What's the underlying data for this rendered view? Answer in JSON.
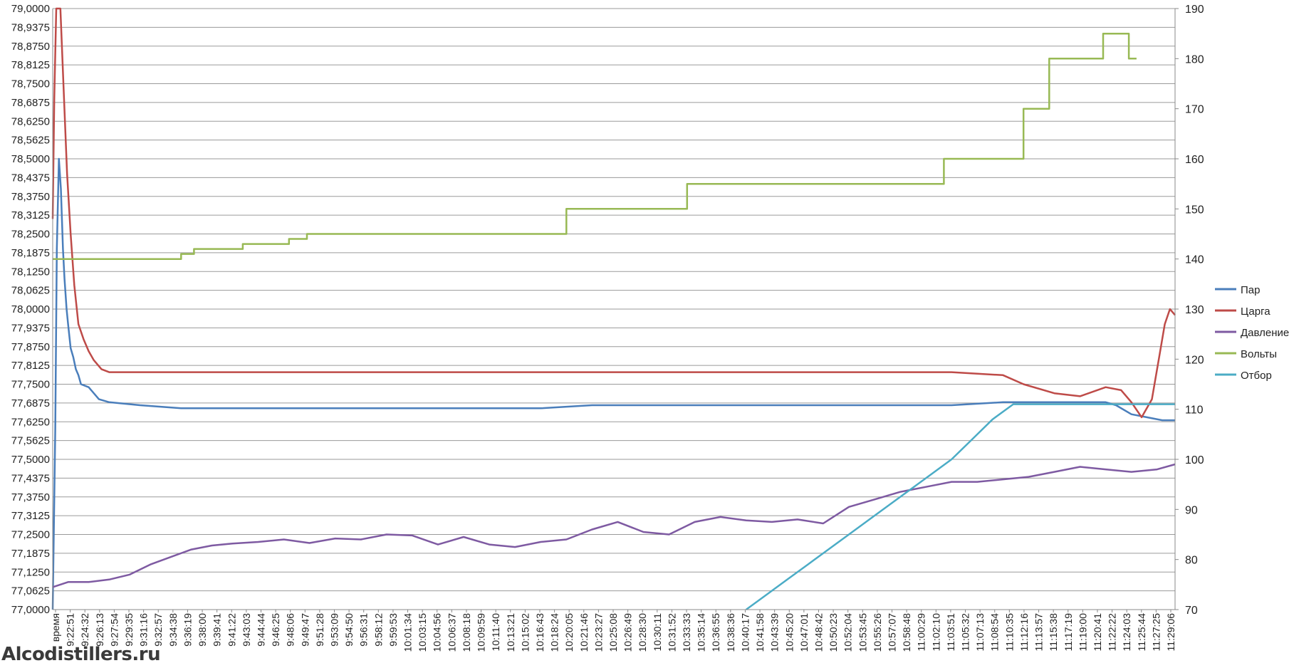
{
  "watermark": "Alcodistillers.ru",
  "chart_data": {
    "type": "line",
    "first_tick_label": "время",
    "x_tick_labels": [
      "9:22:51",
      "9:24:32",
      "9:26:13",
      "9:27:54",
      "9:29:35",
      "9:31:16",
      "9:32:57",
      "9:34:38",
      "9:36:19",
      "9:38:00",
      "9:39:41",
      "9:41:22",
      "9:43:03",
      "9:44:44",
      "9:46:25",
      "9:48:06",
      "9:49:47",
      "9:51:28",
      "9:53:09",
      "9:54:50",
      "9:56:31",
      "9:58:12",
      "9:59:53",
      "10:01:34",
      "10:03:15",
      "10:04:56",
      "10:06:37",
      "10:08:18",
      "10:09:59",
      "10:11:40",
      "10:13:21",
      "10:15:02",
      "10:16:43",
      "10:18:24",
      "10:20:05",
      "10:21:46",
      "10:23:27",
      "10:25:08",
      "10:26:49",
      "10:28:30",
      "10:30:11",
      "10:31:52",
      "10:33:33",
      "10:35:14",
      "10:36:55",
      "10:38:36",
      "10:40:17",
      "10:41:58",
      "10:43:39",
      "10:45:20",
      "10:47:01",
      "10:48:42",
      "10:50:23",
      "10:52:04",
      "10:53:45",
      "10:55:26",
      "10:57:07",
      "10:58:48",
      "11:00:29",
      "11:02:10",
      "11:03:51",
      "11:05:32",
      "11:07:13",
      "11:08:54",
      "11:10:35",
      "11:12:16",
      "11:13:57",
      "11:15:38",
      "11:17:19",
      "11:19:00",
      "11:20:41",
      "11:22:22",
      "11:24:03",
      "11:25:44",
      "11:27:25",
      "11:29:06"
    ],
    "y_left": {
      "min": 77.0,
      "max": 79.0,
      "step": 0.0625,
      "tick_labels": [
        "77,0000",
        "77,0625",
        "77,1250",
        "77,1875",
        "77,2500",
        "77,3125",
        "77,3750",
        "77,4375",
        "77,5000",
        "77,5625",
        "77,6250",
        "77,6875",
        "77,7500",
        "77,8125",
        "77,8750",
        "77,9375",
        "78,0000",
        "78,0625",
        "78,1250",
        "78,1875",
        "78,2500",
        "78,3125",
        "78,3750",
        "78,4375",
        "78,5000",
        "78,5625",
        "78,6250",
        "78,6875",
        "78,7500",
        "78,8125",
        "78,8750",
        "78,9375",
        "79,0000"
      ]
    },
    "y_right": {
      "min": 70,
      "max": 190,
      "step": 10,
      "tick_labels": [
        "70",
        "80",
        "90",
        "100",
        "110",
        "120",
        "130",
        "140",
        "150",
        "160",
        "170",
        "180",
        "190"
      ]
    },
    "x_range": [
      9.35,
      11.535
    ],
    "grid": true,
    "legend_position": "right",
    "series": [
      {
        "name": "Пар",
        "axis": "left",
        "color": "#4a7ebb",
        "points": [
          [
            9.35,
            77.0
          ],
          [
            9.355,
            77.6
          ],
          [
            9.358,
            78.2
          ],
          [
            9.362,
            78.5
          ],
          [
            9.366,
            78.4
          ],
          [
            9.37,
            78.2
          ],
          [
            9.373,
            78.1
          ],
          [
            9.377,
            78.0
          ],
          [
            9.38,
            77.95
          ],
          [
            9.385,
            77.87
          ],
          [
            9.39,
            77.84
          ],
          [
            9.395,
            77.8
          ],
          [
            9.4,
            77.78
          ],
          [
            9.405,
            77.75
          ],
          [
            9.42,
            77.74
          ],
          [
            9.44,
            77.7
          ],
          [
            9.46,
            77.69
          ],
          [
            9.52,
            77.68
          ],
          [
            9.6,
            77.67
          ],
          [
            9.7,
            77.67
          ],
          [
            9.8,
            77.67
          ],
          [
            9.9,
            77.67
          ],
          [
            10.0,
            77.67
          ],
          [
            10.1,
            77.67
          ],
          [
            10.2,
            77.67
          ],
          [
            10.3,
            77.67
          ],
          [
            10.4,
            77.68
          ],
          [
            10.5,
            77.68
          ],
          [
            10.6,
            77.68
          ],
          [
            10.7,
            77.68
          ],
          [
            10.8,
            77.68
          ],
          [
            10.9,
            77.68
          ],
          [
            11.0,
            77.68
          ],
          [
            11.1,
            77.68
          ],
          [
            11.2,
            77.69
          ],
          [
            11.25,
            77.69
          ],
          [
            11.3,
            77.69
          ],
          [
            11.35,
            77.69
          ],
          [
            11.4,
            77.69
          ],
          [
            11.42,
            77.68
          ],
          [
            11.45,
            77.65
          ],
          [
            11.48,
            77.64
          ],
          [
            11.51,
            77.63
          ],
          [
            11.535,
            77.63
          ]
        ]
      },
      {
        "name": "Царга",
        "axis": "left",
        "color": "#be4b48",
        "points": [
          [
            9.35,
            78.3
          ],
          [
            9.353,
            78.7
          ],
          [
            9.357,
            79.0
          ],
          [
            9.365,
            79.0
          ],
          [
            9.372,
            78.7
          ],
          [
            9.378,
            78.45
          ],
          [
            9.385,
            78.25
          ],
          [
            9.392,
            78.08
          ],
          [
            9.4,
            77.95
          ],
          [
            9.41,
            77.9
          ],
          [
            9.42,
            77.86
          ],
          [
            9.43,
            77.83
          ],
          [
            9.445,
            77.8
          ],
          [
            9.46,
            77.79
          ],
          [
            9.5,
            77.79
          ],
          [
            9.6,
            77.79
          ],
          [
            9.7,
            77.79
          ],
          [
            9.8,
            77.79
          ],
          [
            9.9,
            77.79
          ],
          [
            10.0,
            77.79
          ],
          [
            10.1,
            77.79
          ],
          [
            10.2,
            77.79
          ],
          [
            10.3,
            77.79
          ],
          [
            10.4,
            77.79
          ],
          [
            10.5,
            77.79
          ],
          [
            10.6,
            77.79
          ],
          [
            10.7,
            77.79
          ],
          [
            10.8,
            77.79
          ],
          [
            10.9,
            77.79
          ],
          [
            11.0,
            77.79
          ],
          [
            11.1,
            77.79
          ],
          [
            11.2,
            77.78
          ],
          [
            11.24,
            77.75
          ],
          [
            11.3,
            77.72
          ],
          [
            11.35,
            77.71
          ],
          [
            11.4,
            77.74
          ],
          [
            11.43,
            77.73
          ],
          [
            11.45,
            77.69
          ],
          [
            11.47,
            77.64
          ],
          [
            11.49,
            77.7
          ],
          [
            11.505,
            77.85
          ],
          [
            11.515,
            77.95
          ],
          [
            11.525,
            78.0
          ],
          [
            11.535,
            77.98
          ]
        ]
      },
      {
        "name": "Давление",
        "axis": "right",
        "color": "#7e5aa2",
        "points": [
          [
            9.35,
            74.5
          ],
          [
            9.38,
            75.5
          ],
          [
            9.42,
            75.5
          ],
          [
            9.46,
            76.0
          ],
          [
            9.5,
            77.0
          ],
          [
            9.54,
            79.0
          ],
          [
            9.58,
            80.5
          ],
          [
            9.62,
            82.0
          ],
          [
            9.66,
            82.8
          ],
          [
            9.7,
            83.2
          ],
          [
            9.75,
            83.5
          ],
          [
            9.8,
            84.0
          ],
          [
            9.85,
            83.3
          ],
          [
            9.9,
            84.2
          ],
          [
            9.95,
            84.0
          ],
          [
            10.0,
            85.0
          ],
          [
            10.05,
            84.8
          ],
          [
            10.1,
            83.0
          ],
          [
            10.15,
            84.5
          ],
          [
            10.2,
            83.0
          ],
          [
            10.25,
            82.5
          ],
          [
            10.3,
            83.5
          ],
          [
            10.35,
            84.0
          ],
          [
            10.4,
            86.0
          ],
          [
            10.45,
            87.5
          ],
          [
            10.5,
            85.5
          ],
          [
            10.55,
            85.0
          ],
          [
            10.6,
            87.5
          ],
          [
            10.65,
            88.5
          ],
          [
            10.7,
            87.8
          ],
          [
            10.75,
            87.5
          ],
          [
            10.8,
            88.0
          ],
          [
            10.85,
            87.2
          ],
          [
            10.9,
            90.5
          ],
          [
            10.95,
            92.0
          ],
          [
            11.0,
            93.5
          ],
          [
            11.05,
            94.5
          ],
          [
            11.1,
            95.5
          ],
          [
            11.15,
            95.5
          ],
          [
            11.2,
            96.0
          ],
          [
            11.25,
            96.5
          ],
          [
            11.3,
            97.5
          ],
          [
            11.35,
            98.5
          ],
          [
            11.4,
            98.0
          ],
          [
            11.45,
            97.5
          ],
          [
            11.5,
            98.0
          ],
          [
            11.535,
            99.0
          ]
        ]
      },
      {
        "name": "Вольты",
        "axis": "right",
        "color": "#98b954",
        "points": [
          [
            9.35,
            140
          ],
          [
            9.6,
            140
          ],
          [
            9.6,
            141
          ],
          [
            9.625,
            141
          ],
          [
            9.625,
            142
          ],
          [
            9.72,
            142
          ],
          [
            9.72,
            143
          ],
          [
            9.81,
            143
          ],
          [
            9.81,
            144
          ],
          [
            9.845,
            144
          ],
          [
            9.845,
            145
          ],
          [
            10.35,
            145
          ],
          [
            10.35,
            150
          ],
          [
            10.585,
            150
          ],
          [
            10.585,
            155
          ],
          [
            11.085,
            155
          ],
          [
            11.085,
            160
          ],
          [
            11.24,
            160
          ],
          [
            11.24,
            170
          ],
          [
            11.29,
            170
          ],
          [
            11.29,
            180
          ],
          [
            11.395,
            180
          ],
          [
            11.395,
            185
          ],
          [
            11.445,
            185
          ],
          [
            11.445,
            180
          ],
          [
            11.46,
            180
          ]
        ]
      },
      {
        "name": "Отбор",
        "axis": "right",
        "color": "#4bacc6",
        "points": [
          [
            10.7,
            70
          ],
          [
            10.74,
            73
          ],
          [
            10.78,
            76
          ],
          [
            10.82,
            79
          ],
          [
            10.86,
            82
          ],
          [
            10.9,
            85
          ],
          [
            10.94,
            88
          ],
          [
            10.98,
            91
          ],
          [
            11.02,
            94
          ],
          [
            11.06,
            97
          ],
          [
            11.1,
            100
          ],
          [
            11.14,
            104
          ],
          [
            11.18,
            108
          ],
          [
            11.22,
            111
          ],
          [
            11.3,
            111
          ],
          [
            11.4,
            111
          ],
          [
            11.535,
            111
          ]
        ]
      }
    ]
  }
}
